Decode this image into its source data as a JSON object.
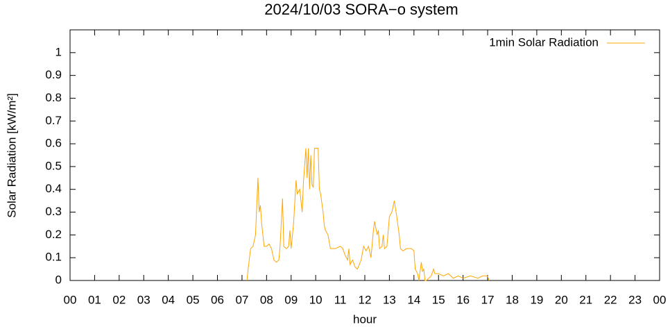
{
  "chart_data": {
    "type": "line",
    "title": "2024/10/03 SORA−o system",
    "x_label": "hour",
    "y_label": "Solar Radiation [kW/m²]",
    "legend_position": "top-right",
    "xlim": [
      0,
      24
    ],
    "ylim": [
      0,
      1.1
    ],
    "xticks": [
      {
        "value": 0,
        "label": "00"
      },
      {
        "value": 1,
        "label": "01"
      },
      {
        "value": 2,
        "label": "02"
      },
      {
        "value": 3,
        "label": "03"
      },
      {
        "value": 4,
        "label": "04"
      },
      {
        "value": 5,
        "label": "05"
      },
      {
        "value": 6,
        "label": "06"
      },
      {
        "value": 7,
        "label": "07"
      },
      {
        "value": 8,
        "label": "08"
      },
      {
        "value": 9,
        "label": "09"
      },
      {
        "value": 10,
        "label": "10"
      },
      {
        "value": 11,
        "label": "11"
      },
      {
        "value": 12,
        "label": "12"
      },
      {
        "value": 13,
        "label": "13"
      },
      {
        "value": 14,
        "label": "14"
      },
      {
        "value": 15,
        "label": "15"
      },
      {
        "value": 16,
        "label": "16"
      },
      {
        "value": 17,
        "label": "17"
      },
      {
        "value": 18,
        "label": "18"
      },
      {
        "value": 19,
        "label": "19"
      },
      {
        "value": 20,
        "label": "20"
      },
      {
        "value": 21,
        "label": "21"
      },
      {
        "value": 22,
        "label": "22"
      },
      {
        "value": 23,
        "label": "23"
      },
      {
        "value": 24,
        "label": "00"
      }
    ],
    "yticks": [
      0,
      0.1,
      0.2,
      0.3,
      0.4,
      0.5,
      0.6,
      0.7,
      0.8,
      0.9,
      1
    ],
    "x": [
      7.2,
      7.25,
      7.35,
      7.45,
      7.55,
      7.65,
      7.7,
      7.75,
      7.8,
      7.9,
      8.0,
      8.1,
      8.2,
      8.3,
      8.4,
      8.5,
      8.55,
      8.65,
      8.7,
      8.8,
      8.9,
      8.95,
      9.0,
      9.1,
      9.2,
      9.25,
      9.35,
      9.45,
      9.5,
      9.6,
      9.65,
      9.7,
      9.75,
      9.8,
      9.85,
      9.9,
      9.95,
      10.1,
      10.15,
      10.2,
      10.3,
      10.35,
      10.4,
      10.5,
      10.6,
      10.8,
      11.0,
      11.1,
      11.2,
      11.3,
      11.35,
      11.4,
      11.5,
      11.6,
      11.7,
      11.85,
      11.95,
      12.05,
      12.15,
      12.25,
      12.35,
      12.4,
      12.5,
      12.55,
      12.6,
      12.7,
      12.75,
      12.8,
      12.9,
      13.0,
      13.1,
      13.2,
      13.3,
      13.4,
      13.45,
      13.55,
      13.7,
      13.8,
      13.9,
      14.0,
      14.05,
      14.15,
      14.2,
      14.3,
      14.35,
      14.4,
      14.45,
      14.5,
      14.6,
      14.7,
      14.8,
      14.85,
      15.0,
      15.2,
      15.4,
      15.6,
      15.8,
      16.0,
      16.3,
      16.6,
      16.8,
      17.0,
      17.05
    ],
    "series": [
      {
        "name": "1min Solar Radiation",
        "color": "#ffa500",
        "values": [
          0,
          0.05,
          0.14,
          0.15,
          0.2,
          0.45,
          0.3,
          0.33,
          0.25,
          0.15,
          0.15,
          0.16,
          0.14,
          0.09,
          0.08,
          0.09,
          0.15,
          0.36,
          0.15,
          0.14,
          0.15,
          0.22,
          0.14,
          0.25,
          0.44,
          0.38,
          0.4,
          0.3,
          0.43,
          0.58,
          0.45,
          0.58,
          0.4,
          0.55,
          0.42,
          0.41,
          0.58,
          0.58,
          0.4,
          0.38,
          0.3,
          0.24,
          0.22,
          0.2,
          0.14,
          0.14,
          0.15,
          0.14,
          0.11,
          0.09,
          0.14,
          0.07,
          0.09,
          0.06,
          0.05,
          0.09,
          0.15,
          0.13,
          0.15,
          0.1,
          0.22,
          0.26,
          0.2,
          0.22,
          0.14,
          0.15,
          0.2,
          0.14,
          0.15,
          0.28,
          0.3,
          0.35,
          0.28,
          0.2,
          0.14,
          0.13,
          0.14,
          0.14,
          0.14,
          0.13,
          0.05,
          0.03,
          0,
          0.08,
          0.04,
          0.05,
          0,
          0,
          0.01,
          0.02,
          0.05,
          0.03,
          0.03,
          0.02,
          0.03,
          0.01,
          0.02,
          0.01,
          0.02,
          0.01,
          0.02,
          0.02,
          0
        ]
      }
    ]
  }
}
